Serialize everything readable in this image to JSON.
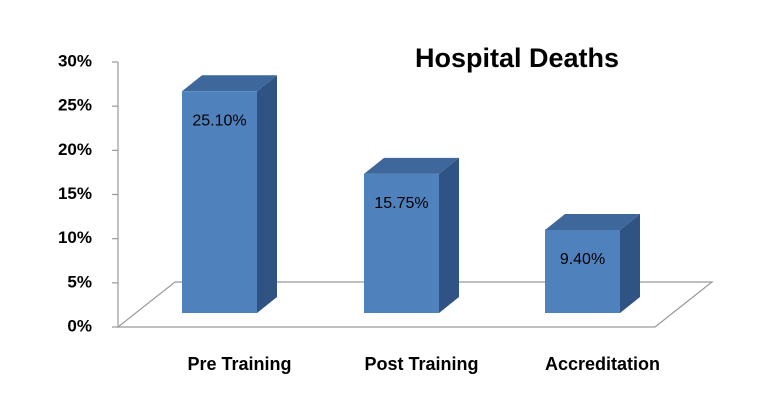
{
  "chart_data": {
    "type": "bar3d",
    "title": "Hospital Deaths",
    "categories": [
      "Pre Training",
      "Post Training",
      "Accreditation"
    ],
    "values": [
      25.1,
      15.75,
      9.4
    ],
    "value_labels": [
      "25.10%",
      "15.75%",
      "9.40%"
    ],
    "color": "#4f81bd",
    "ylim": [
      0,
      30
    ],
    "yticks": [
      {
        "value": 0,
        "label": "0%"
      },
      {
        "value": 5,
        "label": "5%"
      },
      {
        "value": 10,
        "label": "10%"
      },
      {
        "value": 15,
        "label": "15%"
      },
      {
        "value": 20,
        "label": "20%"
      },
      {
        "value": 25,
        "label": "25%"
      },
      {
        "value": 30,
        "label": "30%"
      }
    ]
  }
}
